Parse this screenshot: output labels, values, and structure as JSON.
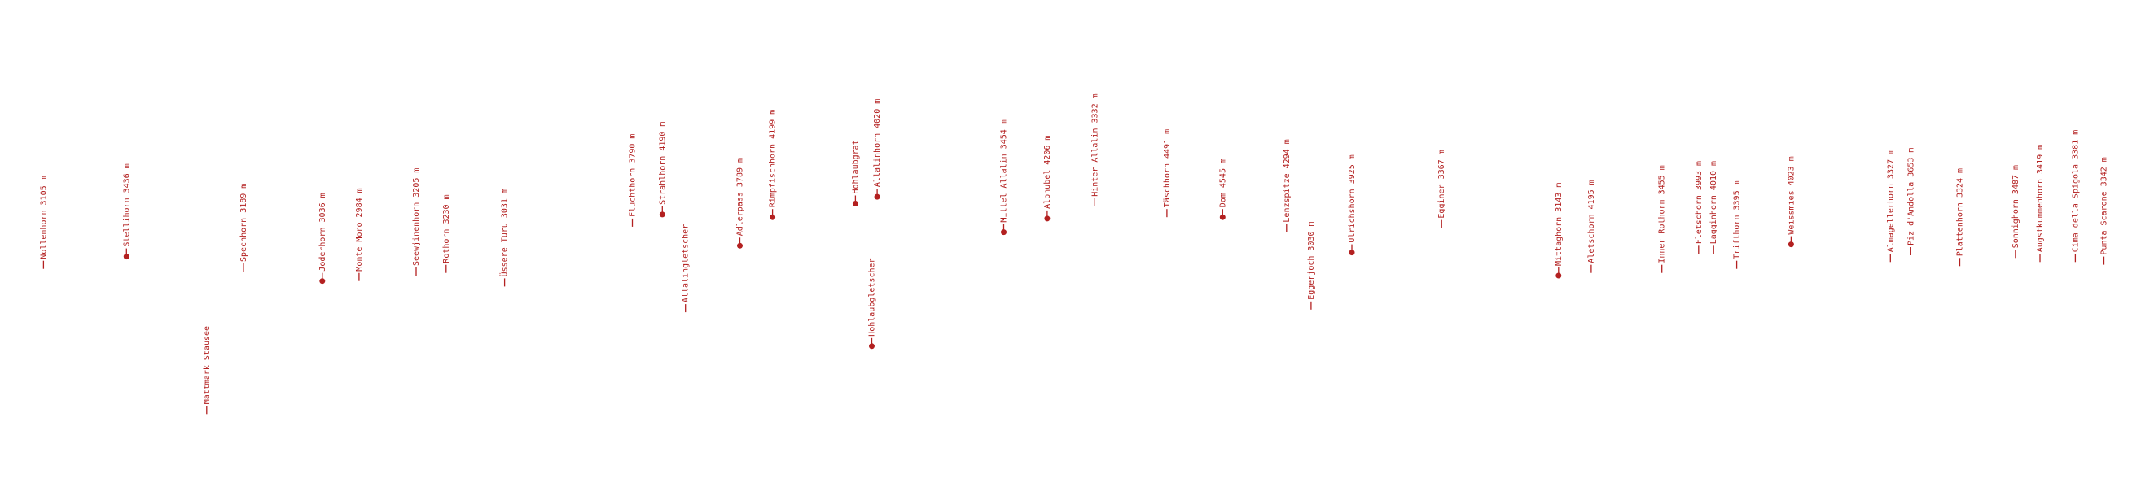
{
  "labels": [
    {
      "text": "Nollenhorn 3105 m",
      "dot": false
    },
    {
      "text": "Stellihorn 3436 m",
      "dot": true
    },
    {
      "text": "Mattmark Stausee",
      "dot": false
    },
    {
      "text": "Spechhorn 3189 m",
      "dot": false
    },
    {
      "text": "Joderhorn 3036 m",
      "dot": true
    },
    {
      "text": "Monte Moro 2984 m",
      "dot": false
    },
    {
      "text": "Seewjinenhorn 3205 m",
      "dot": false
    },
    {
      "text": "Rothorn 3230 m",
      "dot": false
    },
    {
      "text": "Üssere Turu 3031 m",
      "dot": false
    },
    {
      "text": "Fluchthorn 3790 m",
      "dot": false
    },
    {
      "text": "Strahlhorn 4190 m",
      "dot": true
    },
    {
      "text": "Allalingletscher",
      "dot": false
    },
    {
      "text": "Adlerpass 3789 m",
      "dot": true
    },
    {
      "text": "Rimpfischhorn 4199 m",
      "dot": true
    },
    {
      "text": "Hohlaubgrat",
      "dot": true
    },
    {
      "text": "Allalinhorn 4020 m",
      "dot": true
    },
    {
      "text": "Hohlaubgletscher",
      "dot": true
    },
    {
      "text": "Mittel Allalin 3454 m",
      "dot": true
    },
    {
      "text": "Alphubel 4206 m",
      "dot": true
    },
    {
      "text": "Hinter Allalin 3332 m",
      "dot": false
    },
    {
      "text": "Täschhorn 4491 m",
      "dot": false
    },
    {
      "text": "Dom 4545 m",
      "dot": true
    },
    {
      "text": "Lenzspitze 4294 m",
      "dot": false
    },
    {
      "text": "Eggerjoch 3030 m",
      "dot": false
    },
    {
      "text": "Ulrichshorn 3925 m",
      "dot": true
    },
    {
      "text": "Egginer 3367 m",
      "dot": false
    },
    {
      "text": "Mittaghorn 3143 m",
      "dot": true
    },
    {
      "text": "Aletschorn 4195 m",
      "dot": false
    },
    {
      "text": "Inner Rothorn 3455 m",
      "dot": false
    },
    {
      "text": "Fletschorn 3993 m",
      "dot": false
    },
    {
      "text": "Lagginhorn 4010 m",
      "dot": false
    },
    {
      "text": "Trifthorn 3395 m",
      "dot": false
    },
    {
      "text": "Weissmies 4023 m",
      "dot": true
    },
    {
      "text": "Almagellerhorn 3327 m",
      "dot": false
    },
    {
      "text": "Piz d'Andolla 3653 m",
      "dot": false
    },
    {
      "text": "Plattenhorn 3324 m",
      "dot": false
    },
    {
      "text": "Sonnighorn 3487 m",
      "dot": false
    },
    {
      "text": "Augstkummenhorn 3419 m",
      "dot": false
    },
    {
      "text": "Cima della Spigola 3381 m",
      "dot": false
    },
    {
      "text": "Punta Scarone 3342 m",
      "dot": false
    }
  ]
}
